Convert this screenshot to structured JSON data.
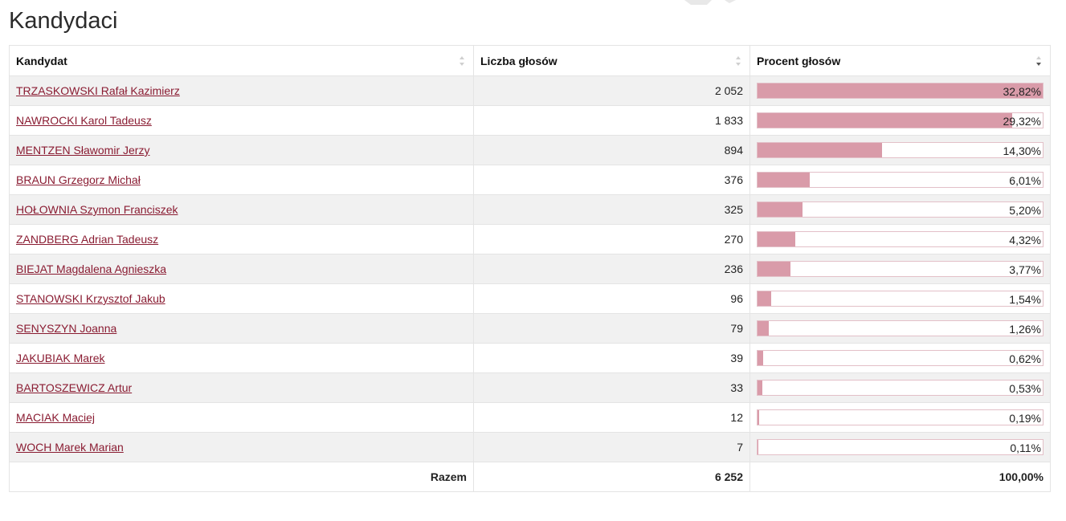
{
  "page": {
    "title": "Kandydaci"
  },
  "table": {
    "headers": {
      "candidate": "Kandydat",
      "votes": "Liczba głosów",
      "percent": "Procent głosów"
    },
    "sort": {
      "candidate": "none",
      "votes": "none",
      "percent": "descending"
    },
    "rows": [
      {
        "name": "TRZASKOWSKI Rafał Kazimierz",
        "votes": "2 052",
        "percent": "32,82%",
        "share": 32.82
      },
      {
        "name": "NAWROCKI Karol Tadeusz",
        "votes": "1 833",
        "percent": "29,32%",
        "share": 29.32
      },
      {
        "name": "MENTZEN Sławomir Jerzy",
        "votes": "894",
        "percent": "14,30%",
        "share": 14.3
      },
      {
        "name": "BRAUN Grzegorz Michał",
        "votes": "376",
        "percent": "6,01%",
        "share": 6.01
      },
      {
        "name": "HOŁOWNIA Szymon Franciszek",
        "votes": "325",
        "percent": "5,20%",
        "share": 5.2
      },
      {
        "name": "ZANDBERG Adrian Tadeusz",
        "votes": "270",
        "percent": "4,32%",
        "share": 4.32
      },
      {
        "name": "BIEJAT Magdalena Agnieszka",
        "votes": "236",
        "percent": "3,77%",
        "share": 3.77
      },
      {
        "name": "STANOWSKI Krzysztof Jakub",
        "votes": "96",
        "percent": "1,54%",
        "share": 1.54
      },
      {
        "name": "SENYSZYN Joanna",
        "votes": "79",
        "percent": "1,26%",
        "share": 1.26
      },
      {
        "name": "JAKUBIAK Marek",
        "votes": "39",
        "percent": "0,62%",
        "share": 0.62
      },
      {
        "name": "BARTOSZEWICZ Artur",
        "votes": "33",
        "percent": "0,53%",
        "share": 0.53
      },
      {
        "name": "MACIAK Maciej",
        "votes": "12",
        "percent": "0,19%",
        "share": 0.19
      },
      {
        "name": "WOCH Marek Marian",
        "votes": "7",
        "percent": "0,11%",
        "share": 0.11
      }
    ],
    "bar_scale_max": 32.82,
    "footer": {
      "label": "Razem",
      "votes": "6 252",
      "percent": "100,00%"
    }
  },
  "colors": {
    "link": "#8a1c32",
    "bar_fill": "#d99ba9",
    "bar_border": "#e3c0c8",
    "row_stripe": "#f1f1f1"
  }
}
